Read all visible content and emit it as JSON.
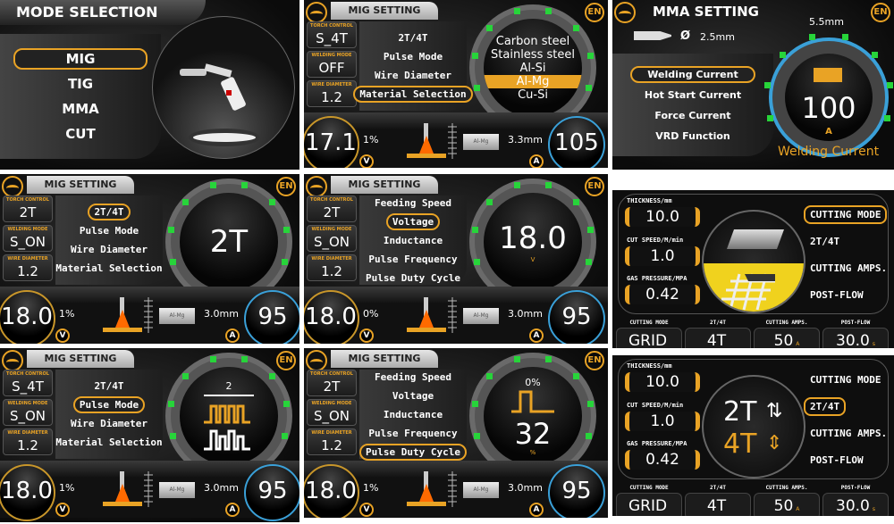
{
  "colors": {
    "accent": "#e9a325",
    "tick": "#27d43a",
    "amp_ring": "#3aa0d8"
  },
  "mode_selection": {
    "title": "MODE SELECTION",
    "items": [
      "MIG",
      "TIG",
      "MMA",
      "CUT"
    ],
    "selected": 0,
    "icon": "mig-torch-icon"
  },
  "common": {
    "mig_title": "MIG SETTING",
    "lang": "EN",
    "torch_label": "TORCH CONTROL",
    "mode_label": "WELDING MODE",
    "wire_label": "WIRE DIAMETER",
    "volt_unit": "V",
    "amp_unit": "A"
  },
  "mig_panels": [
    {
      "torch": "S_4T",
      "mode": "OFF",
      "wire": "1.2",
      "menu": [
        "2T/4T",
        "Pulse Mode",
        "Wire Diameter",
        "Material Selection"
      ],
      "selected": 3,
      "dial": {
        "kind": "list",
        "items": [
          "Carbon steel",
          "Stainless steel",
          "Al-Si",
          "Al-Mg",
          "Cu-Si"
        ],
        "highlight": 3
      },
      "voltage": "17.1",
      "percent": "1%",
      "material": "Al-Mg",
      "thickness": "3.3mm",
      "current": "105"
    },
    {
      "torch": "2T",
      "mode": "S_ON",
      "wire": "1.2",
      "menu": [
        "2T/4T",
        "Pulse Mode",
        "Wire Diameter",
        "Material Selection"
      ],
      "selected": 0,
      "dial": {
        "kind": "value",
        "value": "2T",
        "unit": ""
      },
      "voltage": "18.0",
      "percent": "1%",
      "material": "Al-Mg",
      "thickness": "3.0mm",
      "current": "95"
    },
    {
      "torch": "2T",
      "mode": "S_ON",
      "wire": "1.2",
      "menu": [
        "Feeding Speed",
        "Voltage",
        "Inductance",
        "Pulse Frequency",
        "Pulse Duty Cycle"
      ],
      "selected": 1,
      "dial": {
        "kind": "value",
        "value": "18.0",
        "unit": "V"
      },
      "voltage": "18.0",
      "percent": "0%",
      "material": "Al-Mg",
      "thickness": "3.0mm",
      "current": "95"
    },
    {
      "torch": "S_4T",
      "mode": "S_ON",
      "wire": "1.2",
      "menu": [
        "2T/4T",
        "Pulse Mode",
        "Wire Diameter",
        "Material Selection"
      ],
      "selected": 1,
      "dial": {
        "kind": "pulse",
        "top": "2"
      },
      "voltage": "18.0",
      "percent": "1%",
      "material": "Al-Mg",
      "thickness": "3.0mm",
      "current": "95"
    },
    {
      "torch": "2T",
      "mode": "S_ON",
      "wire": "1.2",
      "menu": [
        "Feeding Speed",
        "Voltage",
        "Inductance",
        "Pulse Frequency",
        "Pulse Duty Cycle"
      ],
      "selected": 4,
      "dial": {
        "kind": "duty",
        "top": "0%",
        "value": "32",
        "unit": "%"
      },
      "voltage": "18.0",
      "percent": "1%",
      "material": "Al-Mg",
      "thickness": "3.0mm",
      "current": "95"
    }
  ],
  "mma": {
    "title": "MMA SETTING",
    "lang": "EN",
    "electrode": "Ø",
    "electrode_size": "2.5mm",
    "top_value": "5.5mm",
    "menu": [
      "Welding Current",
      "Hot Start Current",
      "Force Current",
      "VRD Function"
    ],
    "selected": 0,
    "value": "100",
    "unit": "A",
    "caption": "Welding Current"
  },
  "cut_panels": [
    {
      "params": [
        {
          "label": "THICKNESS/mm",
          "value": "10.0"
        },
        {
          "label": "CUT SPEED/M/min",
          "value": "1.0"
        },
        {
          "label": "GAS PRESSURE/MPA",
          "value": "0.42"
        }
      ],
      "menu": [
        "CUTTING MODE",
        "2T/4T",
        "CUTTING AMPS.",
        "POST-FLOW"
      ],
      "selected": 0,
      "center": {
        "kind": "grid"
      },
      "bottom": [
        {
          "label": "CUTTING MODE",
          "value": "GRID",
          "unit": ""
        },
        {
          "label": "2T/4T",
          "value": "4T",
          "unit": ""
        },
        {
          "label": "CUTTING AMPS.",
          "value": "50",
          "unit": "A"
        },
        {
          "label": "POST-FLOW",
          "value": "30.0",
          "unit": "s"
        }
      ]
    },
    {
      "params": [
        {
          "label": "THICKNESS/mm",
          "value": "10.0"
        },
        {
          "label": "CUT SPEED/M/min",
          "value": "1.0"
        },
        {
          "label": "GAS PRESSURE/MPA",
          "value": "0.42"
        }
      ],
      "menu": [
        "CUTTING MODE",
        "2T/4T",
        "CUTTING AMPS.",
        "POST-FLOW"
      ],
      "selected": 1,
      "center": {
        "kind": "2t4t",
        "line1": "2T",
        "line2": "4T"
      },
      "bottom": [
        {
          "label": "CUTTING MODE",
          "value": "GRID",
          "unit": ""
        },
        {
          "label": "2T/4T",
          "value": "4T",
          "unit": ""
        },
        {
          "label": "CUTTING AMPS.",
          "value": "50",
          "unit": "A"
        },
        {
          "label": "POST-FLOW",
          "value": "30.0",
          "unit": "s"
        }
      ]
    }
  ]
}
